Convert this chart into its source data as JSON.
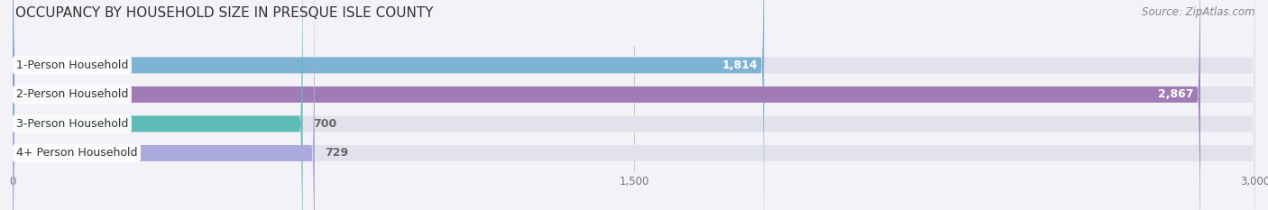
{
  "title": "OCCUPANCY BY HOUSEHOLD SIZE IN PRESQUE ISLE COUNTY",
  "source": "Source: ZipAtlas.com",
  "categories": [
    "1-Person Household",
    "2-Person Household",
    "3-Person Household",
    "4+ Person Household"
  ],
  "values": [
    1814,
    2867,
    700,
    729
  ],
  "bar_colors": [
    "#7fb3d3",
    "#a07bb5",
    "#5bbcb5",
    "#aaaadd"
  ],
  "background_color": "#f2f2f7",
  "bar_background_color": "#e2e2ec",
  "row_background_color": "#f2f2f7",
  "xlim": [
    0,
    3000
  ],
  "xticks": [
    0,
    1500,
    3000
  ],
  "value_inside": [
    true,
    true,
    false,
    false
  ],
  "title_fontsize": 11,
  "source_fontsize": 8.5,
  "bar_label_fontsize": 9,
  "value_fontsize": 9
}
